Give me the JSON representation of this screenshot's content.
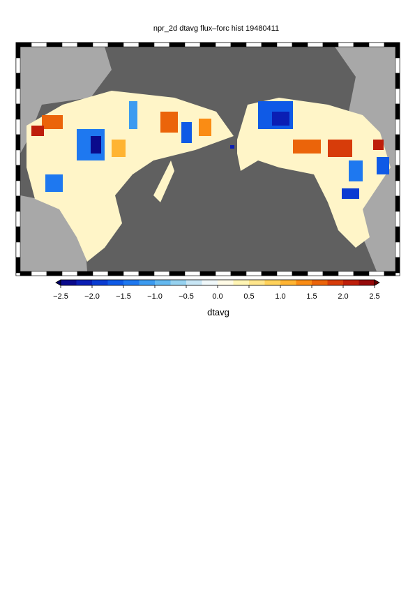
{
  "title": "npr_2d dtavg flux–forc hist 19480411",
  "colorbar": {
    "lim": [
      -2.5,
      2.5
    ],
    "ticks": [
      {
        "value": -2.5,
        "label": "−2.5"
      },
      {
        "value": -2,
        "label": "−2.0"
      },
      {
        "value": -1.5,
        "label": "−1.5"
      },
      {
        "value": -1,
        "label": "−1.0"
      },
      {
        "value": -0.5,
        "label": "−0.5"
      },
      {
        "value": 0,
        "label": "0.0"
      },
      0.5,
      {
        "value": 1,
        "label": "1.0"
      },
      1.5,
      {
        "value": 2,
        "label": "2.0"
      },
      2.5
    ],
    "colors": [
      "#0a0a8c",
      "#0a1eb4",
      "#0a3cd2",
      "#0f5ae6",
      "#1e78f0",
      "#3c9bf0",
      "#64b9f0",
      "#96d2f0",
      "#c8e6f5",
      "#f0f8fa",
      "#fffbe6",
      "#fff5b4",
      "#ffe68c",
      "#ffd25a",
      "#ffb432",
      "#fa8c14",
      "#eb640a",
      "#d73c0a",
      "#be1e0a",
      "#960a0a"
    ],
    "under": "#000064",
    "over": "#640000",
    "label": "dtavg"
  }
}
